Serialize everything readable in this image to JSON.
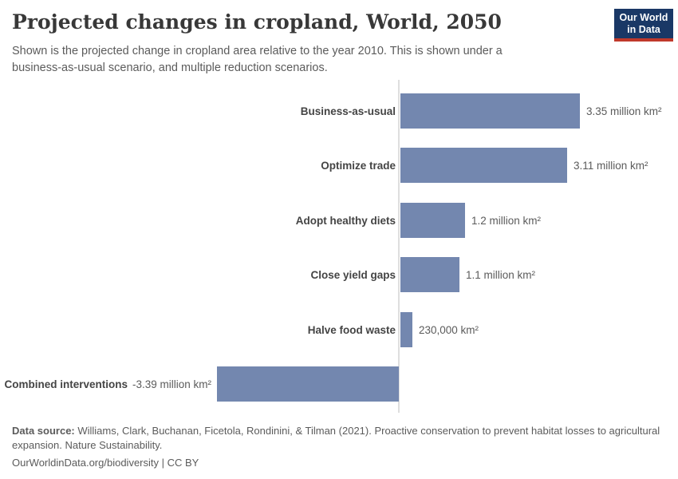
{
  "colors": {
    "bar": "#7387af",
    "axis": "#dedede",
    "title": "#383838",
    "subtitle": "#5b5b5b",
    "category_label": "#444444",
    "value_label": "#5b5b5b",
    "footer": "#5b5b5b",
    "logo_bg": "#1a3866",
    "logo_stripe": "#c0392b",
    "logo_text": "#ffffff"
  },
  "header": {
    "title": "Projected changes in cropland, World, 2050",
    "subtitle": "Shown is the projected change in cropland area relative to the year 2010. This is shown under a business-as-usual scenario, and multiple reduction scenarios.",
    "logo": {
      "line1": "Our World",
      "line2": "in Data"
    }
  },
  "chart_data": {
    "type": "bar",
    "orientation": "horizontal",
    "title": "Projected changes in cropland, World, 2050",
    "unit": "million km²",
    "xlim": [
      -3.39,
      3.35
    ],
    "zero_baseline": true,
    "grid": false,
    "legend": "none",
    "categories": [
      "Business-as-usual",
      "Optimize trade",
      "Adopt healthy diets",
      "Close yield gaps",
      "Halve food waste",
      "Combined interventions"
    ],
    "values": [
      3.35,
      3.11,
      1.2,
      1.1,
      0.23,
      -3.39
    ],
    "value_labels": [
      "3.35 million km²",
      "3.11 million km²",
      "1.2 million km²",
      "1.1 million km²",
      "230,000 km²",
      "-3.39 million km²"
    ]
  },
  "footer": {
    "source_prefix": "Data source:",
    "source_text": " Williams, Clark, Buchanan, Ficetola, Rondinini, & Tilman (2021). Proactive conservation to prevent habitat losses to agricultural expansion. Nature Sustainability.",
    "link": "OurWorldinData.org/biodiversity",
    "separator": " | ",
    "license": "CC BY"
  }
}
